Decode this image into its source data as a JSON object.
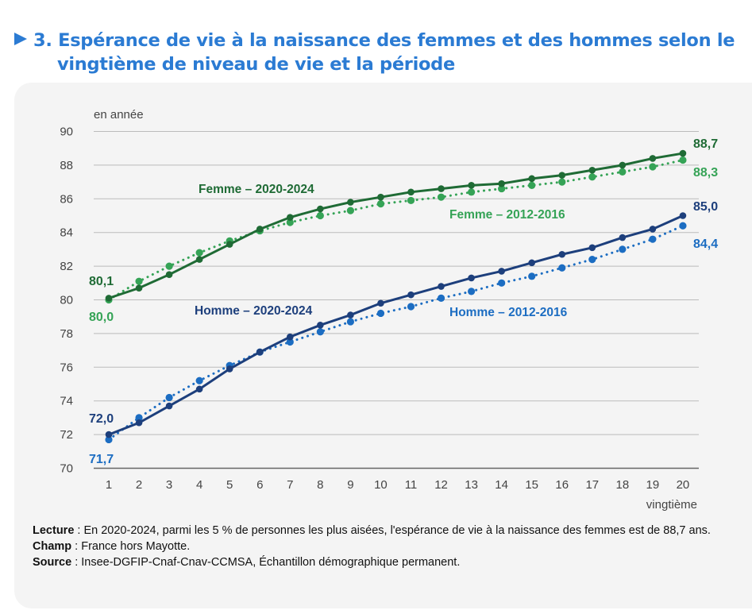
{
  "title": {
    "line1": "3. Espérance de vie à la naissance des femmes et des hommes selon le",
    "line2": "vingtième de niveau de vie et la période",
    "accent_color": "#2b7bd3"
  },
  "chart_data": {
    "type": "line",
    "ylabel": "en année",
    "xlabel": "vingtième",
    "ylim": [
      70,
      90
    ],
    "yticks": [
      "70",
      "72",
      "74",
      "76",
      "78",
      "80",
      "82",
      "84",
      "86",
      "88",
      "90"
    ],
    "x": [
      1,
      2,
      3,
      4,
      5,
      6,
      7,
      8,
      9,
      10,
      11,
      12,
      13,
      14,
      15,
      16,
      17,
      18,
      19,
      20
    ],
    "xticks": [
      "1",
      "2",
      "3",
      "4",
      "5",
      "6",
      "7",
      "8",
      "9",
      "10",
      "11",
      "12",
      "13",
      "14",
      "15",
      "16",
      "17",
      "18",
      "19",
      "20"
    ],
    "grid": true,
    "series": [
      {
        "name": "Femme – 2020-2024",
        "color": "#1f6b35",
        "style": "solid",
        "values": [
          80.1,
          80.7,
          81.5,
          82.4,
          83.3,
          84.2,
          84.9,
          85.4,
          85.8,
          86.1,
          86.4,
          86.6,
          86.8,
          86.9,
          87.2,
          87.4,
          87.7,
          88.0,
          88.4,
          88.7
        ],
        "start_label": "80,1",
        "end_label": "88,7"
      },
      {
        "name": "Femme – 2012-2016",
        "color": "#35a356",
        "style": "dotted",
        "values": [
          80.0,
          81.1,
          82.0,
          82.8,
          83.5,
          84.1,
          84.6,
          85.0,
          85.3,
          85.7,
          85.9,
          86.1,
          86.4,
          86.6,
          86.8,
          87.0,
          87.3,
          87.6,
          87.9,
          88.3
        ],
        "start_label": "80,0",
        "end_label": "88,3"
      },
      {
        "name": "Homme – 2020-2024",
        "color": "#1d3f7c",
        "style": "solid",
        "values": [
          72.0,
          72.7,
          73.7,
          74.7,
          75.9,
          76.9,
          77.8,
          78.5,
          79.1,
          79.8,
          80.3,
          80.8,
          81.3,
          81.7,
          82.2,
          82.7,
          83.1,
          83.7,
          84.2,
          85.0
        ],
        "start_label": "72,0",
        "end_label": "85,0"
      },
      {
        "name": "Homme – 2012-2016",
        "color": "#1c6dc2",
        "style": "dotted",
        "values": [
          71.7,
          73.0,
          74.2,
          75.2,
          76.1,
          76.9,
          77.5,
          78.1,
          78.7,
          79.2,
          79.6,
          80.1,
          80.5,
          81.0,
          81.4,
          81.9,
          82.4,
          83.0,
          83.6,
          84.4
        ],
        "start_label": "71,7",
        "end_label": "84,4"
      }
    ]
  },
  "notes": {
    "lecture_label": "Lecture",
    "lecture_text": " : En 2020-2024, parmi les 5 % de personnes les plus aisées, l'espérance de vie à la naissance des femmes est de 88,7 ans.",
    "champ_label": "Champ",
    "champ_text": " : France hors Mayotte.",
    "source_label": "Source",
    "source_text": " : Insee-DGFIP-Cnaf-Cnav-CCMSA, Échantillon démographique permanent."
  }
}
